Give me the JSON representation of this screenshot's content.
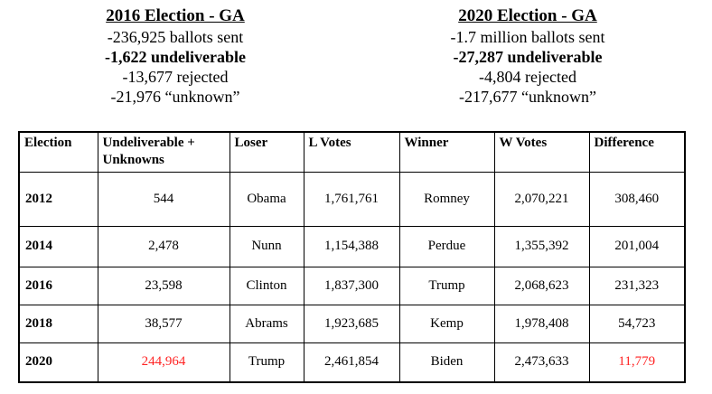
{
  "summary_blocks": [
    {
      "title": "2016 Election - GA",
      "lines": [
        {
          "text": "-236,925 ballots sent",
          "bold": false
        },
        {
          "text": "-1,622 undeliverable",
          "bold": true
        },
        {
          "text": "-13,677 rejected",
          "bold": false
        },
        {
          "text": "-21,976 “unknown”",
          "bold": false
        }
      ]
    },
    {
      "title": "2020 Election - GA",
      "lines": [
        {
          "text": "-1.7 million ballots sent",
          "bold": false
        },
        {
          "text": "-27,287 undeliverable",
          "bold": true
        },
        {
          "text": "-4,804 rejected",
          "bold": false
        },
        {
          "text": "-217,677 “unknown”",
          "bold": false
        }
      ]
    }
  ],
  "table": {
    "columns": [
      "Election",
      "Undeliverable + Unknowns",
      "Loser",
      "L Votes",
      "Winner",
      "W Votes",
      "Difference"
    ],
    "rows": [
      {
        "election": "2012",
        "undeliverable_unknowns": "544",
        "loser": "Obama",
        "l_votes": "1,761,761",
        "winner": "Romney",
        "w_votes": "2,070,221",
        "difference": "308,460",
        "highlighted": []
      },
      {
        "election": "2014",
        "undeliverable_unknowns": "2,478",
        "loser": "Nunn",
        "l_votes": "1,154,388",
        "winner": "Perdue",
        "w_votes": "1,355,392",
        "difference": "201,004",
        "highlighted": []
      },
      {
        "election": "2016",
        "undeliverable_unknowns": "23,598",
        "loser": "Clinton",
        "l_votes": "1,837,300",
        "winner": "Trump",
        "w_votes": "2,068,623",
        "difference": "231,323",
        "highlighted": []
      },
      {
        "election": "2018",
        "undeliverable_unknowns": "38,577",
        "loser": "Abrams",
        "l_votes": "1,923,685",
        "winner": "Kemp",
        "w_votes": "1,978,408",
        "difference": "54,723",
        "highlighted": []
      },
      {
        "election": "2020",
        "undeliverable_unknowns": "244,964",
        "loser": "Trump",
        "l_votes": "2,461,854",
        "winner": "Biden",
        "w_votes": "2,473,633",
        "difference": "11,779",
        "highlighted": [
          "undeliverable_unknowns",
          "difference"
        ]
      }
    ]
  },
  "colors": {
    "highlight_red": "#ff2424",
    "text": "#000000",
    "border": "#000000",
    "background": "#ffffff"
  }
}
